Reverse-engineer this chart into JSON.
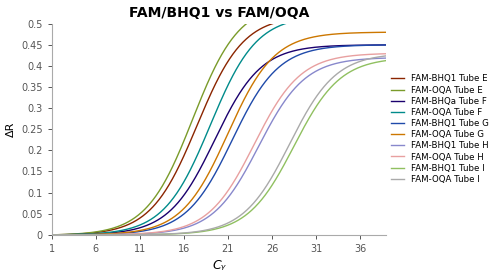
{
  "title": "FAM/BHQ1 vs FAM/OQA",
  "xlabel": "Cᵧ",
  "ylabel": "ΔR",
  "xlim": [
    1,
    39
  ],
  "ylim": [
    0,
    0.5
  ],
  "xticks": [
    1,
    6,
    11,
    16,
    21,
    26,
    31,
    36
  ],
  "yticks": [
    0,
    0.05,
    0.1,
    0.15,
    0.2,
    0.25,
    0.3,
    0.35,
    0.4,
    0.45,
    0.5
  ],
  "series": [
    {
      "label": "FAM-BHQ1 Tube E",
      "color": "#8B2500",
      "midpoint": 17.5,
      "ymax": 0.52,
      "k": 0.38
    },
    {
      "label": "FAM-OQA Tube E",
      "color": "#7A9B2A",
      "midpoint": 17.0,
      "ymax": 0.55,
      "k": 0.38
    },
    {
      "label": "FAM-BHQa Tube F",
      "color": "#1a006e",
      "midpoint": 19.5,
      "ymax": 0.45,
      "k": 0.38
    },
    {
      "label": "FAM-OQA Tube F",
      "color": "#008B8B",
      "midpoint": 19.0,
      "ymax": 0.52,
      "k": 0.38
    },
    {
      "label": "FAM-BHQ1 Tube G",
      "color": "#1f4aaa",
      "midpoint": 21.5,
      "ymax": 0.45,
      "k": 0.38
    },
    {
      "label": "FAM-OQA Tube G",
      "color": "#CC7700",
      "midpoint": 21.0,
      "ymax": 0.48,
      "k": 0.38
    },
    {
      "label": "FAM-BHQ1 Tube H",
      "color": "#8888CC",
      "midpoint": 24.5,
      "ymax": 0.42,
      "k": 0.38
    },
    {
      "label": "FAM-OQA Tube H",
      "color": "#E8A0A0",
      "midpoint": 24.0,
      "ymax": 0.43,
      "k": 0.38
    },
    {
      "label": "FAM-BHQ1 Tube I",
      "color": "#90C060",
      "midpoint": 28.5,
      "ymax": 0.42,
      "k": 0.38
    },
    {
      "label": "FAM-OQA Tube I",
      "color": "#AAAAAA",
      "midpoint": 28.0,
      "ymax": 0.43,
      "k": 0.38
    }
  ],
  "background_color": "#ffffff",
  "legend_fontsize": 6.2,
  "axis_fontsize": 8,
  "title_fontsize": 10
}
